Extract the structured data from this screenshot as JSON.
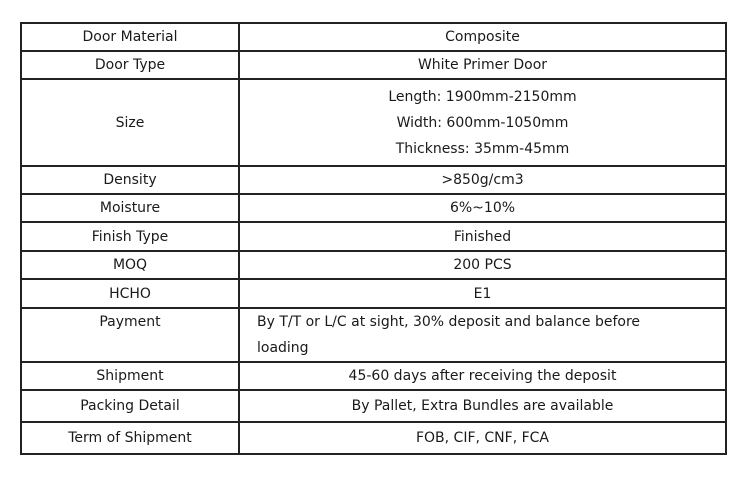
{
  "rows": [
    {
      "label": "Door Material",
      "value": [
        "Composite"
      ]
    },
    {
      "label": "Door Type",
      "value": [
        "White Primer Door"
      ]
    },
    {
      "label": "Size",
      "value": [
        "Length: 1900mm-2150mm",
        "Width: 600mm-1050mm",
        "Thickness: 35mm-45mm"
      ]
    },
    {
      "label": "Density",
      "value": [
        ">850g/cm3"
      ]
    },
    {
      "label": "Moisture",
      "value": [
        "6%~10%"
      ]
    },
    {
      "label": "Finish Type",
      "value": [
        "Finished"
      ]
    },
    {
      "label": "MOQ",
      "value": [
        "200 PCS"
      ]
    },
    {
      "label": "HCHO",
      "value": [
        "E1"
      ]
    },
    {
      "label": "Payment",
      "value": [
        "By T/T or L/C at sight, 30% deposit and balance before",
        "loading"
      ]
    },
    {
      "label": "Shipment",
      "value": [
        "45-60 days after receiving the deposit"
      ]
    },
    {
      "label": "Packing Detail",
      "value": [
        "By Pallet, Extra Bundles are available"
      ]
    },
    {
      "label": "Term of Shipment",
      "value": [
        "FOB, CIF, CNF, FCA"
      ]
    }
  ]
}
